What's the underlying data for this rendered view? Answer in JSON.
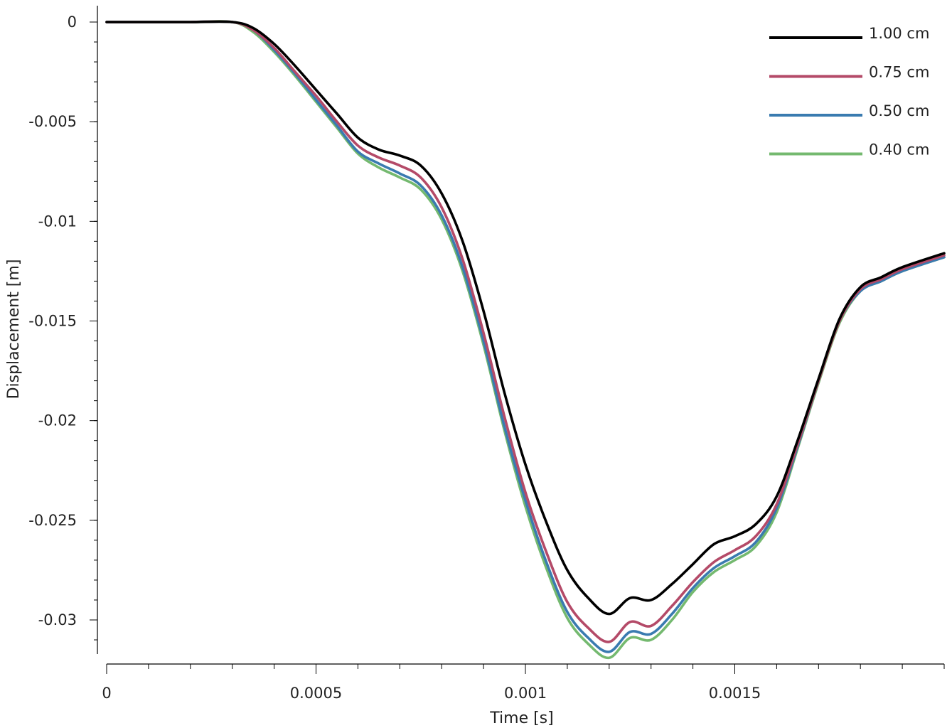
{
  "chart_data": {
    "type": "line",
    "xlabel": "Time [s]",
    "ylabel": "Displacement [m]",
    "xlim": [
      0,
      0.002
    ],
    "ylim": [
      -0.0318,
      0.0008
    ],
    "x_ticks": [
      {
        "value": 0,
        "label": "0"
      },
      {
        "value": 0.0005,
        "label": "0.0005"
      },
      {
        "value": 0.001,
        "label": "0.001"
      },
      {
        "value": 0.0015,
        "label": "0.0015"
      }
    ],
    "x_minor_step": 0.0001,
    "y_ticks": [
      {
        "value": 0,
        "label": "0"
      },
      {
        "value": -0.005,
        "label": "-0.005"
      },
      {
        "value": -0.01,
        "label": "-0.01"
      },
      {
        "value": -0.015,
        "label": "-0.015"
      },
      {
        "value": -0.02,
        "label": "-0.02"
      },
      {
        "value": -0.025,
        "label": "-0.025"
      },
      {
        "value": -0.03,
        "label": "-0.03"
      }
    ],
    "y_minor_step": 0.001,
    "grid": false,
    "legend": "top-right",
    "x": [
      0,
      0.0001,
      0.0002,
      0.0003,
      0.00035,
      0.0004,
      0.00045,
      0.0005,
      0.00055,
      0.0006,
      0.00065,
      0.0007,
      0.00075,
      0.0008,
      0.00085,
      0.0009,
      0.00095,
      0.001,
      0.00105,
      0.0011,
      0.00115,
      0.0012,
      0.00125,
      0.0013,
      0.00135,
      0.0014,
      0.00145,
      0.0015,
      0.00155,
      0.0016,
      0.00165,
      0.0017,
      0.00175,
      0.0018,
      0.00185,
      0.0019,
      0.002
    ],
    "series": [
      {
        "name": "1.00 cm",
        "color": "#000000",
        "values": [
          0,
          0,
          0,
          0,
          -0.0003,
          -0.0011,
          -0.0022,
          -0.0034,
          -0.0046,
          -0.0058,
          -0.0064,
          -0.0067,
          -0.0072,
          -0.0086,
          -0.011,
          -0.0145,
          -0.0186,
          -0.0222,
          -0.0251,
          -0.0275,
          -0.0289,
          -0.0297,
          -0.0289,
          -0.029,
          -0.0282,
          -0.0272,
          -0.0262,
          -0.0258,
          -0.0252,
          -0.0238,
          -0.021,
          -0.0179,
          -0.0149,
          -0.0133,
          -0.0128,
          -0.0123,
          -0.0116
        ]
      },
      {
        "name": "0.75 cm",
        "color": "#b44a68",
        "values": [
          0,
          0,
          0,
          0,
          -0.0004,
          -0.0013,
          -0.0025,
          -0.0037,
          -0.005,
          -0.0062,
          -0.0068,
          -0.0072,
          -0.0078,
          -0.0093,
          -0.0119,
          -0.0156,
          -0.0198,
          -0.0236,
          -0.0266,
          -0.0291,
          -0.0304,
          -0.0311,
          -0.0301,
          -0.0303,
          -0.0293,
          -0.0281,
          -0.0271,
          -0.0265,
          -0.0258,
          -0.0242,
          -0.0212,
          -0.018,
          -0.015,
          -0.0134,
          -0.0129,
          -0.0124,
          -0.0117
        ]
      },
      {
        "name": "0.50 cm",
        "color": "#3a7bb0",
        "values": [
          0,
          0,
          0,
          0,
          -0.0004,
          -0.0014,
          -0.0026,
          -0.0039,
          -0.0052,
          -0.0065,
          -0.0071,
          -0.0076,
          -0.0082,
          -0.0097,
          -0.0123,
          -0.016,
          -0.0203,
          -0.024,
          -0.0271,
          -0.0296,
          -0.0309,
          -0.0316,
          -0.0306,
          -0.0307,
          -0.0297,
          -0.0284,
          -0.0274,
          -0.0268,
          -0.0261,
          -0.0244,
          -0.0213,
          -0.018,
          -0.015,
          -0.0135,
          -0.013,
          -0.0125,
          -0.0118
        ]
      },
      {
        "name": "0.40 cm",
        "color": "#74b96f",
        "values": [
          0,
          0,
          0,
          0,
          -0.0005,
          -0.0015,
          -0.0027,
          -0.004,
          -0.0053,
          -0.0066,
          -0.0073,
          -0.0078,
          -0.0084,
          -0.0099,
          -0.0125,
          -0.0162,
          -0.0205,
          -0.0243,
          -0.0274,
          -0.0299,
          -0.0312,
          -0.0319,
          -0.0309,
          -0.031,
          -0.03,
          -0.0286,
          -0.0276,
          -0.027,
          -0.0263,
          -0.0246,
          -0.0214,
          -0.0181,
          -0.0151,
          -0.0135,
          -0.013,
          -0.0125,
          -0.0118
        ]
      }
    ]
  }
}
